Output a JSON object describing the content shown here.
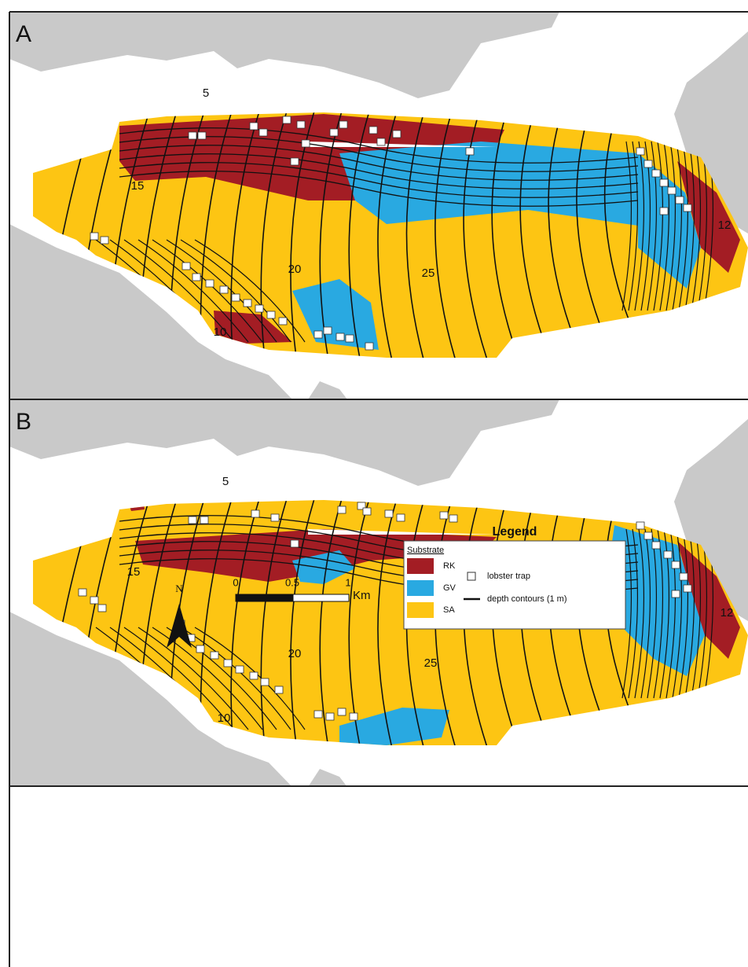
{
  "panels": [
    {
      "label": "A",
      "contour_labels": [
        "5",
        "15",
        "20",
        "25",
        "10",
        "12"
      ]
    },
    {
      "label": "B",
      "contour_labels": [
        "5",
        "15",
        "20",
        "25",
        "10",
        "12"
      ]
    }
  ],
  "north_arrow": "N",
  "scale_bar": {
    "labels": [
      "0",
      "0.5",
      "1"
    ],
    "unit": "Km"
  },
  "legend": {
    "title": "Legend",
    "substrate_heading": "Substrate",
    "substrate_classes": [
      "RK",
      "GV",
      "SA"
    ],
    "symbols": [
      "lobster trap",
      "depth contours (1 m)"
    ]
  }
}
